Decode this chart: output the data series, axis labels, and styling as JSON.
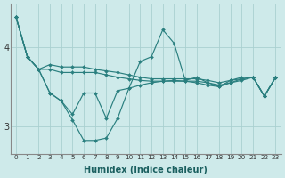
{
  "background_color": "#ceeaea",
  "grid_color": "#aad0d0",
  "line_color": "#2a7f7f",
  "xlabel": "Humidex (Indice chaleur)",
  "ylim": [
    2.65,
    4.55
  ],
  "xlim": [
    -0.5,
    23.5
  ],
  "yticks": [
    3,
    4
  ],
  "xticks": [
    0,
    1,
    2,
    3,
    4,
    5,
    6,
    7,
    8,
    9,
    10,
    11,
    12,
    13,
    14,
    15,
    16,
    17,
    18,
    19,
    20,
    21,
    22,
    23
  ],
  "series": [
    [
      4.38,
      3.88,
      3.72,
      3.42,
      3.32,
      3.08,
      2.82,
      2.82,
      2.85,
      3.1,
      3.48,
      3.82,
      3.88,
      4.22,
      4.05,
      3.58,
      3.62,
      3.55,
      3.5,
      3.58,
      3.62,
      3.62,
      3.38,
      3.62
    ],
    [
      4.38,
      3.88,
      3.72,
      3.42,
      3.32,
      3.15,
      3.42,
      3.42,
      3.1,
      3.45,
      3.48,
      3.52,
      3.55,
      3.57,
      3.58,
      3.57,
      3.55,
      3.52,
      3.5,
      3.55,
      3.6,
      3.62,
      3.38,
      3.62
    ],
    [
      4.38,
      3.88,
      3.72,
      3.72,
      3.68,
      3.68,
      3.68,
      3.68,
      3.65,
      3.62,
      3.6,
      3.58,
      3.57,
      3.57,
      3.57,
      3.57,
      3.57,
      3.55,
      3.52,
      3.55,
      3.58,
      3.62,
      3.38,
      3.62
    ],
    [
      4.38,
      3.88,
      3.72,
      3.78,
      3.75,
      3.75,
      3.75,
      3.72,
      3.7,
      3.68,
      3.65,
      3.62,
      3.6,
      3.6,
      3.6,
      3.6,
      3.6,
      3.58,
      3.55,
      3.58,
      3.6,
      3.62,
      3.38,
      3.62
    ]
  ]
}
